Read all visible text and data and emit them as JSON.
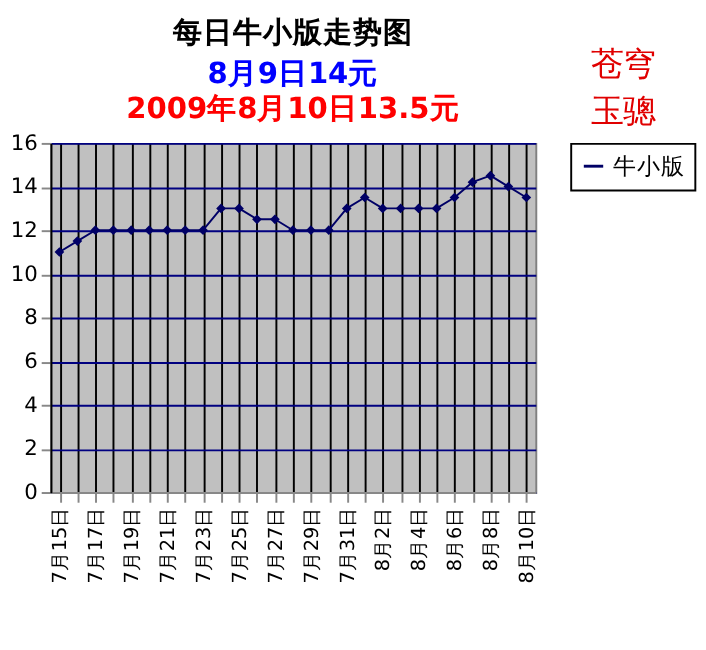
{
  "chart_data": {
    "type": "line",
    "title": "每日牛小版走势图",
    "subtitle": "8月9日14元\n2009年8月10日13.5元",
    "categories": [
      "7月15日",
      null,
      "7月17日",
      null,
      "7月19日",
      null,
      "7月21日",
      null,
      "7月23日",
      null,
      "7月25日",
      null,
      "7月27日",
      null,
      "7月29日",
      null,
      "7月31日",
      null,
      "8月2日",
      null,
      "8月4日",
      null,
      "8月6日",
      null,
      "8月8日",
      null,
      "8月10日"
    ],
    "series": [
      {
        "name": "牛小版",
        "color": "#000066",
        "values": [
          11,
          11.5,
          12,
          12,
          12,
          12,
          12,
          12,
          12,
          13,
          13,
          12.5,
          12.5,
          12,
          12,
          12,
          13,
          13.5,
          13,
          13,
          13,
          13,
          13.5,
          14.2,
          14.5,
          14,
          13.5
        ]
      }
    ],
    "ylim": [
      0,
      16
    ],
    "yticks": [
      0,
      2,
      4,
      6,
      8,
      10,
      12,
      14,
      16
    ],
    "annotations": [
      "苍穹",
      "玉骢"
    ],
    "grid": true,
    "legend": "right",
    "marker": "diamond",
    "line_style": "solid"
  }
}
